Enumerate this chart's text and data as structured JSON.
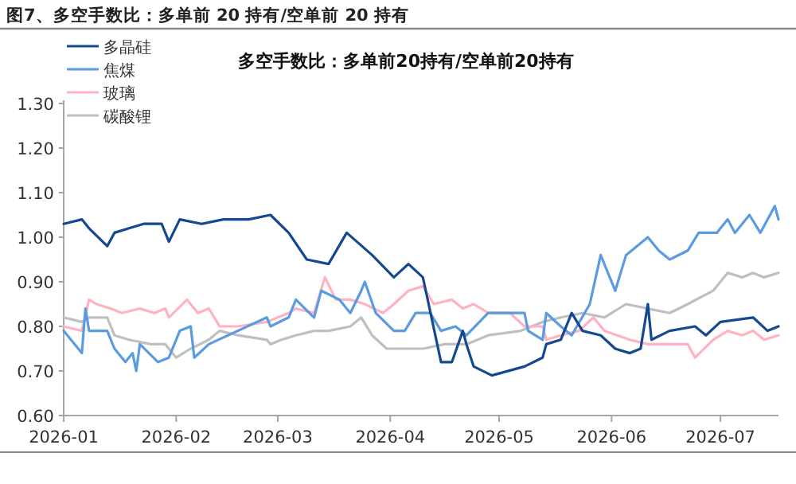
{
  "chart_data": {
    "type": "line",
    "title": "图7、多空手数比：多单前 20 持有/空单前 20 持有",
    "subtitle": "多空手数比：多单前20持有/空单前20持有",
    "xlim": [
      "2026-01-01",
      "2026-07-17"
    ],
    "xticks": [
      {
        "value": "2026-01-01",
        "label": "2026-01"
      },
      {
        "value": "2026-02-01",
        "label": "2026-02"
      },
      {
        "value": "2026-03-01",
        "label": "2026-03"
      },
      {
        "value": "2026-04-01",
        "label": "2026-04"
      },
      {
        "value": "2026-05-01",
        "label": "2026-05"
      },
      {
        "value": "2026-06-01",
        "label": "2026-06"
      },
      {
        "value": "2026-07-01",
        "label": "2026-07"
      }
    ],
    "ylim": [
      0.6,
      1.3
    ],
    "yticks": [
      {
        "value": 0.6,
        "label": "0.60"
      },
      {
        "value": 0.7,
        "label": "0.70"
      },
      {
        "value": 0.8,
        "label": "0.80"
      },
      {
        "value": 0.9,
        "label": "0.90"
      },
      {
        "value": 1.0,
        "label": "1.00"
      },
      {
        "value": 1.1,
        "label": "1.10"
      },
      {
        "value": 1.2,
        "label": "1.20"
      },
      {
        "value": 1.3,
        "label": "1.30"
      }
    ],
    "legend": "top left",
    "series": [
      {
        "name": "多晶硅",
        "color": "#15498f",
        "x": [
          "2026-01-01",
          "2026-01-06",
          "2026-01-08",
          "2026-01-13",
          "2026-01-15",
          "2026-01-19",
          "2026-01-23",
          "2026-01-28",
          "2026-01-30",
          "2026-02-02",
          "2026-02-08",
          "2026-02-14",
          "2026-02-21",
          "2026-02-27",
          "2026-03-04",
          "2026-03-09",
          "2026-03-15",
          "2026-03-20",
          "2026-03-27",
          "2026-04-02",
          "2026-04-06",
          "2026-04-10",
          "2026-04-15",
          "2026-04-18",
          "2026-04-21",
          "2026-04-22",
          "2026-04-24",
          "2026-04-29",
          "2026-05-08",
          "2026-05-13",
          "2026-05-14",
          "2026-05-18",
          "2026-05-21",
          "2026-05-24",
          "2026-05-29",
          "2026-06-02",
          "2026-06-06",
          "2026-06-09",
          "2026-06-11",
          "2026-06-12",
          "2026-06-17",
          "2026-06-24",
          "2026-06-27",
          "2026-07-01",
          "2026-07-10",
          "2026-07-14",
          "2026-07-17"
        ],
        "values": [
          1.03,
          1.04,
          1.02,
          0.98,
          1.01,
          1.02,
          1.03,
          1.03,
          0.99,
          1.04,
          1.03,
          1.04,
          1.04,
          1.05,
          1.01,
          0.95,
          0.94,
          1.01,
          0.96,
          0.91,
          0.94,
          0.91,
          0.72,
          0.72,
          0.79,
          0.76,
          0.71,
          0.69,
          0.71,
          0.73,
          0.76,
          0.77,
          0.83,
          0.79,
          0.78,
          0.75,
          0.74,
          0.75,
          0.85,
          0.77,
          0.79,
          0.8,
          0.78,
          0.81,
          0.82,
          0.79,
          0.8
        ]
      },
      {
        "name": "焦煤",
        "color": "#5b9be0",
        "x": [
          "2026-01-01",
          "2026-01-06",
          "2026-01-07",
          "2026-01-08",
          "2026-01-13",
          "2026-01-15",
          "2026-01-18",
          "2026-01-20",
          "2026-01-21",
          "2026-01-22",
          "2026-01-27",
          "2026-01-30",
          "2026-02-02",
          "2026-02-05",
          "2026-02-06",
          "2026-02-10",
          "2026-02-26",
          "2026-02-27",
          "2026-03-04",
          "2026-03-06",
          "2026-03-11",
          "2026-03-13",
          "2026-03-18",
          "2026-03-21",
          "2026-03-24",
          "2026-03-25",
          "2026-03-28",
          "2026-04-02",
          "2026-04-05",
          "2026-04-08",
          "2026-04-12",
          "2026-04-15",
          "2026-04-19",
          "2026-04-22",
          "2026-04-28",
          "2026-05-08",
          "2026-05-09",
          "2026-05-13",
          "2026-05-14",
          "2026-05-18",
          "2026-05-21",
          "2026-05-26",
          "2026-05-29",
          "2026-06-02",
          "2026-06-05",
          "2026-06-11",
          "2026-06-14",
          "2026-06-17",
          "2026-06-22",
          "2026-06-25",
          "2026-06-30",
          "2026-07-03",
          "2026-07-05",
          "2026-07-09",
          "2026-07-12",
          "2026-07-16",
          "2026-07-17"
        ],
        "values": [
          0.79,
          0.74,
          0.84,
          0.79,
          0.79,
          0.75,
          0.72,
          0.74,
          0.7,
          0.76,
          0.72,
          0.73,
          0.79,
          0.8,
          0.73,
          0.76,
          0.82,
          0.8,
          0.82,
          0.86,
          0.82,
          0.88,
          0.86,
          0.83,
          0.88,
          0.9,
          0.83,
          0.79,
          0.79,
          0.83,
          0.83,
          0.79,
          0.8,
          0.78,
          0.83,
          0.83,
          0.79,
          0.77,
          0.83,
          0.8,
          0.78,
          0.85,
          0.96,
          0.88,
          0.96,
          1.0,
          0.97,
          0.95,
          0.97,
          1.01,
          1.01,
          1.04,
          1.01,
          1.05,
          1.01,
          1.07,
          1.04
        ]
      },
      {
        "name": "玻璃",
        "color": "#ffb3c1",
        "x": [
          "2026-01-01",
          "2026-01-06",
          "2026-01-08",
          "2026-01-10",
          "2026-01-14",
          "2026-01-17",
          "2026-01-22",
          "2026-01-26",
          "2026-01-29",
          "2026-01-30",
          "2026-02-04",
          "2026-02-07",
          "2026-02-10",
          "2026-02-13",
          "2026-02-18",
          "2026-02-26",
          "2026-03-01",
          "2026-03-04",
          "2026-03-06",
          "2026-03-11",
          "2026-03-14",
          "2026-03-17",
          "2026-03-21",
          "2026-03-25",
          "2026-03-30",
          "2026-04-02",
          "2026-04-06",
          "2026-04-10",
          "2026-04-13",
          "2026-04-18",
          "2026-04-21",
          "2026-04-24",
          "2026-04-28",
          "2026-05-04",
          "2026-05-08",
          "2026-05-13",
          "2026-05-14",
          "2026-05-18",
          "2026-05-23",
          "2026-05-27",
          "2026-05-30",
          "2026-06-06",
          "2026-06-11",
          "2026-06-17",
          "2026-06-22",
          "2026-06-24",
          "2026-06-29",
          "2026-07-03",
          "2026-07-07",
          "2026-07-10",
          "2026-07-13",
          "2026-07-17"
        ],
        "values": [
          0.8,
          0.79,
          0.86,
          0.85,
          0.84,
          0.83,
          0.84,
          0.83,
          0.84,
          0.82,
          0.86,
          0.83,
          0.84,
          0.8,
          0.8,
          0.81,
          0.82,
          0.83,
          0.84,
          0.83,
          0.91,
          0.86,
          0.86,
          0.85,
          0.83,
          0.85,
          0.88,
          0.89,
          0.85,
          0.86,
          0.84,
          0.85,
          0.83,
          0.83,
          0.8,
          0.8,
          0.77,
          0.78,
          0.79,
          0.82,
          0.79,
          0.77,
          0.76,
          0.76,
          0.76,
          0.73,
          0.77,
          0.79,
          0.78,
          0.79,
          0.77,
          0.78
        ]
      },
      {
        "name": "碳酸锂",
        "color": "#bfbfbf",
        "x": [
          "2026-01-01",
          "2026-01-06",
          "2026-01-08",
          "2026-01-13",
          "2026-01-15",
          "2026-01-19",
          "2026-01-25",
          "2026-01-29",
          "2026-02-01",
          "2026-02-05",
          "2026-02-10",
          "2026-02-13",
          "2026-02-18",
          "2026-02-26",
          "2026-02-27",
          "2026-03-02",
          "2026-03-06",
          "2026-03-11",
          "2026-03-15",
          "2026-03-21",
          "2026-03-24",
          "2026-03-27",
          "2026-03-31",
          "2026-04-05",
          "2026-04-10",
          "2026-04-16",
          "2026-04-22",
          "2026-04-28",
          "2026-05-07",
          "2026-05-13",
          "2026-05-18",
          "2026-05-24",
          "2026-05-30",
          "2026-06-05",
          "2026-06-11",
          "2026-06-17",
          "2026-06-22",
          "2026-06-29",
          "2026-07-03",
          "2026-07-07",
          "2026-07-10",
          "2026-07-13",
          "2026-07-17"
        ],
        "values": [
          0.82,
          0.81,
          0.82,
          0.82,
          0.78,
          0.77,
          0.76,
          0.76,
          0.73,
          0.75,
          0.77,
          0.79,
          0.78,
          0.77,
          0.76,
          0.77,
          0.78,
          0.79,
          0.79,
          0.8,
          0.82,
          0.78,
          0.75,
          0.75,
          0.75,
          0.76,
          0.76,
          0.78,
          0.79,
          0.81,
          0.82,
          0.83,
          0.82,
          0.85,
          0.84,
          0.83,
          0.85,
          0.88,
          0.92,
          0.91,
          0.92,
          0.91,
          0.92
        ]
      }
    ]
  }
}
